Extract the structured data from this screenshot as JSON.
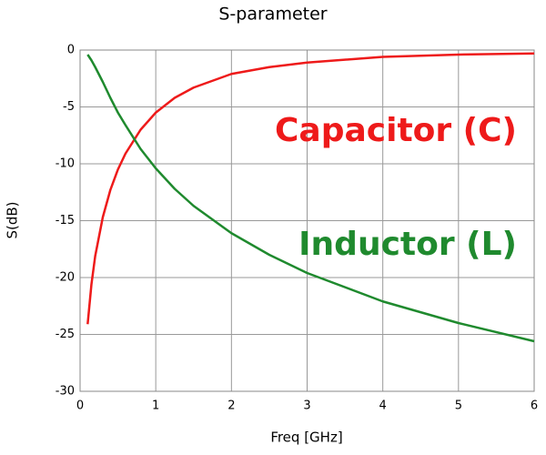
{
  "chart_data": {
    "type": "line",
    "title": "S-parameter",
    "xlabel": "Freq [GHz]",
    "ylabel": "S(dB)",
    "x": [
      0.1,
      0.15,
      0.2,
      0.3,
      0.4,
      0.5,
      0.6,
      0.8,
      1,
      1.25,
      1.5,
      2,
      2.5,
      3,
      4,
      5,
      6
    ],
    "series": [
      {
        "name": "Capacitor (C)",
        "color": "#ee1a1a",
        "values": [
          -24.1,
          -20.6,
          -18.1,
          -14.7,
          -12.3,
          -10.5,
          -9.1,
          -7.0,
          -5.5,
          -4.2,
          -3.3,
          -2.1,
          -1.5,
          -1.1,
          -0.6,
          -0.4,
          -0.3
        ]
      },
      {
        "name": "Inductor (L)",
        "color": "#1f8a2e",
        "values": [
          -0.4,
          -0.9,
          -1.5,
          -2.8,
          -4.2,
          -5.5,
          -6.6,
          -8.7,
          -10.4,
          -12.2,
          -13.7,
          -16.1,
          -18.0,
          -19.6,
          -22.1,
          -24.0,
          -25.6
        ]
      }
    ],
    "xlim": [
      0,
      6
    ],
    "xticks": [
      0,
      1,
      2,
      3,
      4,
      5,
      6
    ],
    "ylim": [
      -30,
      0
    ],
    "yticks": [
      -30,
      -25,
      -20,
      -15,
      -10,
      -5,
      0
    ],
    "grid": true
  }
}
